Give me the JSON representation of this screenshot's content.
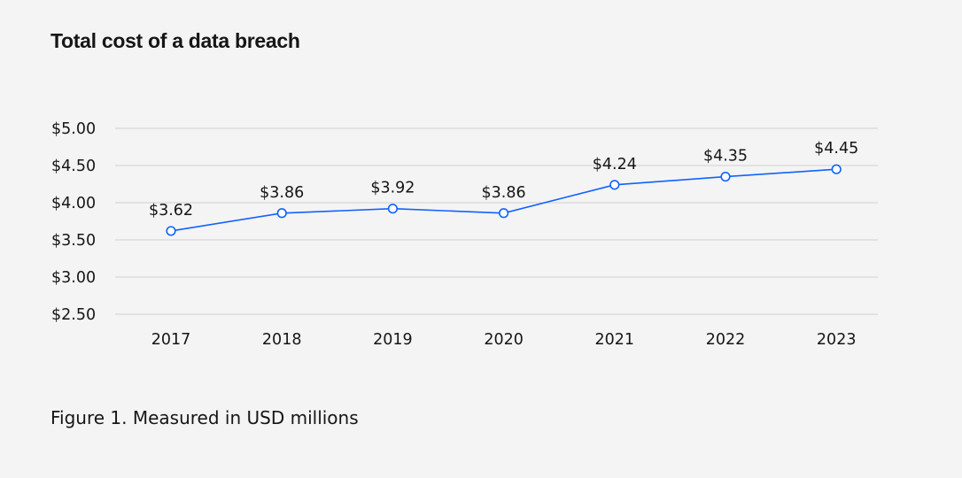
{
  "chart_data": {
    "type": "line",
    "title": "Total cost of a data breach",
    "categories": [
      "2017",
      "2018",
      "2019",
      "2020",
      "2021",
      "2022",
      "2023"
    ],
    "series": [
      {
        "values": [
          3.62,
          3.86,
          3.92,
          3.86,
          4.24,
          4.35,
          4.45
        ],
        "labels": [
          "$3.62",
          "$3.86",
          "$3.92",
          "$3.86",
          "$4.24",
          "$4.35",
          "$4.45"
        ]
      }
    ],
    "yticks": [
      {
        "value": 5.0,
        "label": "$5.00"
      },
      {
        "value": 4.5,
        "label": "$4.50"
      },
      {
        "value": 4.0,
        "label": "$4.00"
      },
      {
        "value": 3.5,
        "label": "$3.50"
      },
      {
        "value": 3.0,
        "label": "$3.00"
      },
      {
        "value": 2.5,
        "label": "$2.50"
      }
    ],
    "xlabel": "",
    "ylabel": "",
    "grid": true,
    "line_color": "#0f62fe"
  },
  "caption": "Figure 1. Measured in USD millions"
}
